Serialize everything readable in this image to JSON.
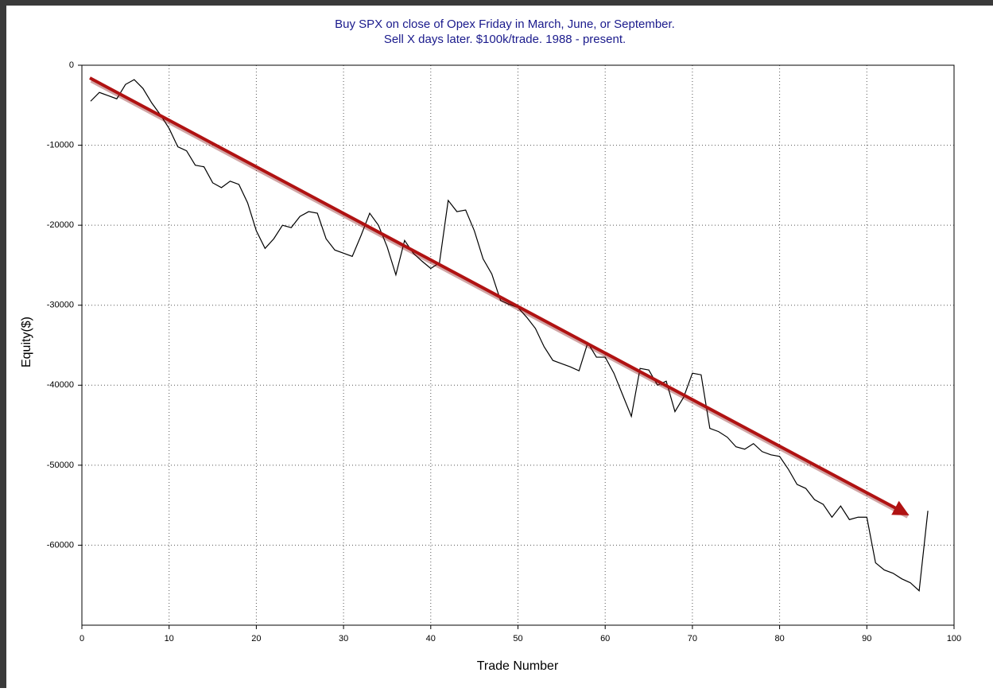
{
  "chart_data": {
    "type": "line",
    "title": "Buy SPX on close of Opex Friday in March, June, or September.",
    "subtitle": "Sell X days later. $100k/trade. 1988 - present.",
    "x_label": "Trade Number",
    "y_label": "Equity($)",
    "x": [
      1,
      2,
      3,
      4,
      5,
      6,
      7,
      8,
      9,
      10,
      11,
      12,
      13,
      14,
      15,
      16,
      17,
      18,
      19,
      20,
      21,
      22,
      23,
      24,
      25,
      26,
      27,
      28,
      29,
      30,
      31,
      32,
      33,
      34,
      35,
      36,
      37,
      38,
      39,
      40,
      41,
      42,
      43,
      44,
      45,
      46,
      47,
      48,
      49,
      50,
      51,
      52,
      53,
      54,
      55,
      56,
      57,
      58,
      59,
      60,
      61,
      62,
      63,
      64,
      65,
      66,
      67,
      68,
      69,
      70,
      71,
      72,
      73,
      74,
      75,
      76,
      77,
      78,
      79,
      80,
      81,
      82,
      83,
      84,
      85,
      86,
      87,
      88,
      89,
      90,
      91,
      92,
      93,
      94,
      95,
      96,
      97
    ],
    "series": [
      {
        "name": "Equity",
        "color": "#000000",
        "values": [
          -4500,
          -3400,
          -3800,
          -4200,
          -2400,
          -1800,
          -2900,
          -4700,
          -6200,
          -7900,
          -10200,
          -10700,
          -12500,
          -12700,
          -14700,
          -15300,
          -14500,
          -14900,
          -17200,
          -20700,
          -22900,
          -21700,
          -20000,
          -20300,
          -18900,
          -18300,
          -18500,
          -21700,
          -23100,
          -23500,
          -23900,
          -21300,
          -18500,
          -20000,
          -22700,
          -26200,
          -21900,
          -23500,
          -24500,
          -25400,
          -24700,
          -16900,
          -18300,
          -18100,
          -20700,
          -24200,
          -26100,
          -29400,
          -29900,
          -30300,
          -31500,
          -32900,
          -35200,
          -36900,
          -37300,
          -37700,
          -38200,
          -34700,
          -36500,
          -36500,
          -38500,
          -41200,
          -43900,
          -37900,
          -38100,
          -40000,
          -39500,
          -43300,
          -41500,
          -38500,
          -38700,
          -45400,
          -45800,
          -46500,
          -47700,
          -48000,
          -47300,
          -48300,
          -48700,
          -48900,
          -50500,
          -52400,
          -52900,
          -54300,
          -54900,
          -56500,
          -55100,
          -56800,
          -56500,
          -56500,
          -62200,
          -63100,
          -63500,
          -64200,
          -64700,
          -65700,
          -55700
        ]
      }
    ],
    "xlim": [
      0,
      100
    ],
    "xticks": [
      0,
      10,
      20,
      30,
      40,
      50,
      60,
      70,
      80,
      90,
      100
    ],
    "ylim": [
      -70000,
      0
    ],
    "yticks": [
      0,
      -10000,
      -20000,
      -30000,
      -40000,
      -50000,
      -60000
    ],
    "grid": true,
    "title_color": "#1a1a8c"
  }
}
